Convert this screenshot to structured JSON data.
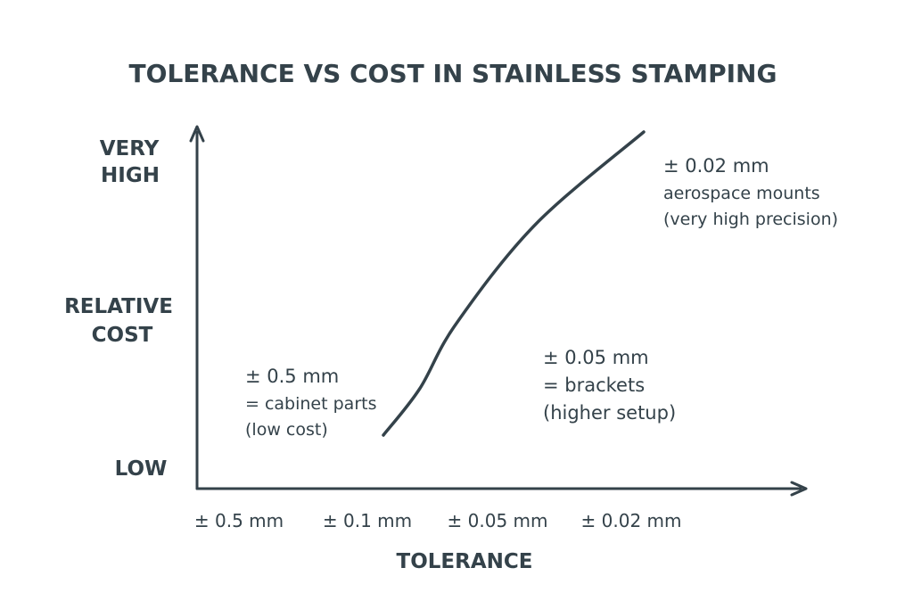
{
  "chart_data": {
    "type": "line",
    "title": "TOLERANCE VS COST IN STAINLESS STAMPING",
    "xlabel": "TOLERANCE",
    "ylabel": [
      "RELATIVE",
      "COST"
    ],
    "y_levels": {
      "low": "LOW",
      "very_high": [
        "VERY",
        "HIGH"
      ]
    },
    "categories": [
      "± 0.5 mm",
      "± 0.1 mm",
      "± 0.05 mm",
      "± 0.02 mm"
    ],
    "series": [
      {
        "x": [
          0.5,
          0.3,
          0.15,
          0.05,
          0.02
        ],
        "y": [
          0.15,
          0.28,
          0.46,
          0.74,
          1.0
        ]
      }
    ],
    "ylim": [
      0,
      1
    ],
    "grid": false,
    "legend": "none",
    "annotations": [
      {
        "key": "low",
        "lines": [
          "± 0.5 mm",
          "= cabinet parts",
          "(low cost)"
        ]
      },
      {
        "key": "mid",
        "lines": [
          "± 0.05 mm",
          "= brackets",
          "(higher setup)"
        ]
      },
      {
        "key": "high",
        "lines": [
          "± 0.02 mm",
          "aerospace mounts",
          "(very high precision)"
        ]
      }
    ]
  },
  "colors": {
    "ink": "#34424a",
    "background": "#ffffff"
  }
}
